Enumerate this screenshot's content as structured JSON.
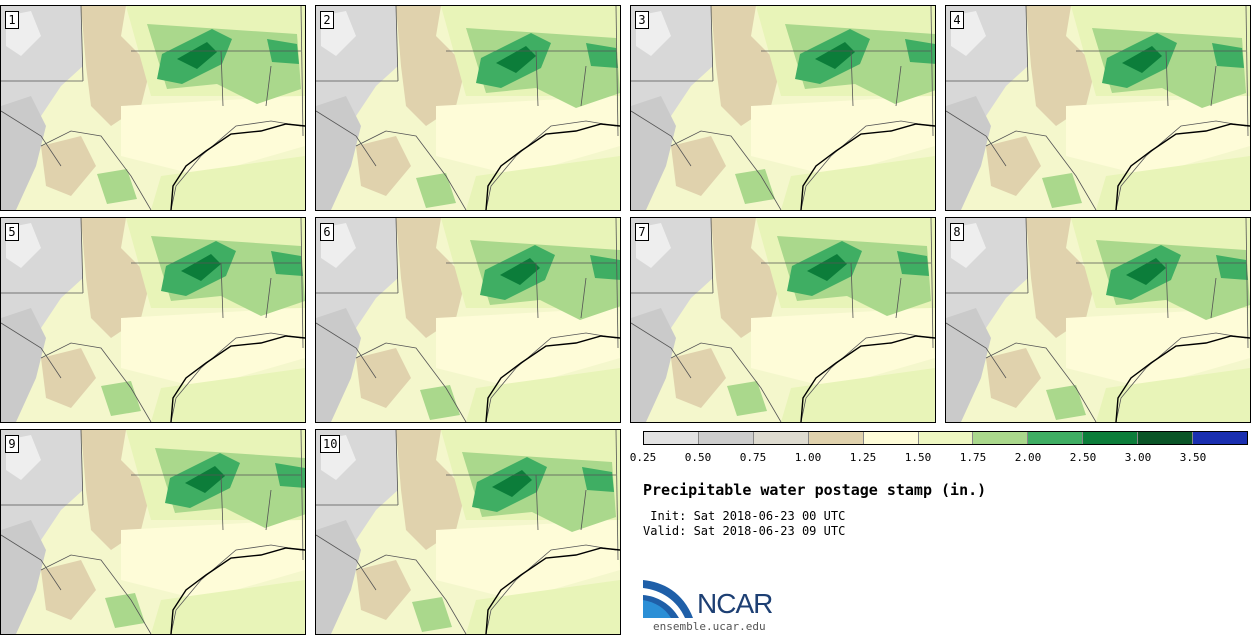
{
  "stamps": [
    {
      "label": "1"
    },
    {
      "label": "2"
    },
    {
      "label": "3"
    },
    {
      "label": "4"
    },
    {
      "label": "5"
    },
    {
      "label": "6"
    },
    {
      "label": "7"
    },
    {
      "label": "8"
    },
    {
      "label": "9"
    },
    {
      "label": "10"
    }
  ],
  "colorbar": {
    "ticks": [
      "0.25",
      "0.50",
      "0.75",
      "1.00",
      "1.25",
      "1.50",
      "1.75",
      "2.00",
      "2.50",
      "3.00",
      "3.50"
    ],
    "colors": [
      "#e2e2e2",
      "#cdcdcd",
      "#dedbd0",
      "#e0d2ad",
      "#fefcd8",
      "#eef7c2",
      "#aad88c",
      "#3fae63",
      "#0c7d3a",
      "#0a5527",
      "#1a2fb0"
    ]
  },
  "title": "Precipitable water postage stamp (in.)",
  "init": " Init: Sat 2018-06-23 00 UTC",
  "valid": "Valid: Sat 2018-06-23 09 UTC",
  "logo": {
    "text": "NCAR",
    "url_text": "ensemble.ucar.edu"
  }
}
